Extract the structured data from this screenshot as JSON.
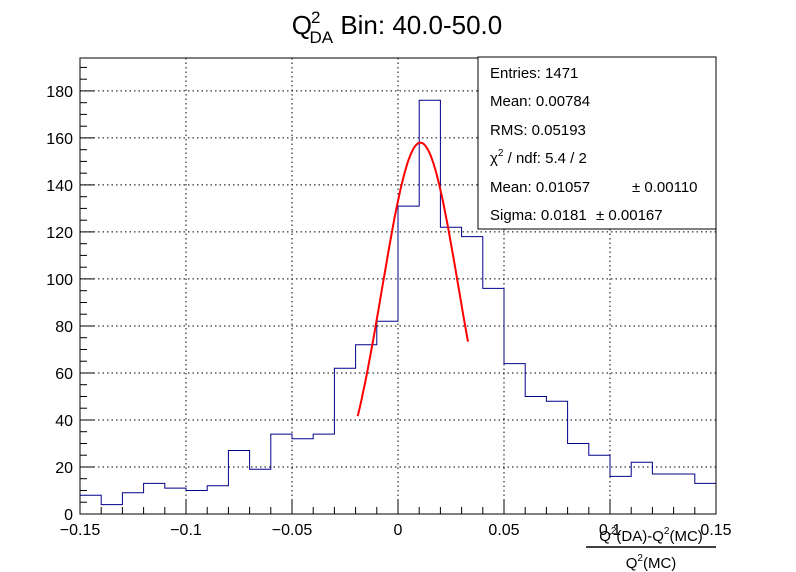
{
  "chart_data": {
    "type": "histogram",
    "title": {
      "main": "Q",
      "sup": "2",
      "sub": "DA",
      "rest": " Bin: 40.0-50.0"
    },
    "xlabel": {
      "numerator_parts": [
        "Q",
        "2",
        "(DA)-Q",
        "2",
        "(MC)"
      ],
      "denominator_parts": [
        "Q",
        "2",
        "(MC)"
      ]
    },
    "xlim": [
      -0.15,
      0.15
    ],
    "ylim": [
      0,
      194
    ],
    "x_ticks": [
      -0.15,
      -0.1,
      -0.05,
      0,
      0.05,
      0.1,
      0.15
    ],
    "x_tick_labels": [
      "−0.15",
      "−0.1",
      "−0.05",
      "0",
      "0.05",
      "0.1",
      "0.15"
    ],
    "y_ticks": [
      0,
      20,
      40,
      60,
      80,
      100,
      120,
      140,
      160,
      180
    ],
    "y_tick_labels": [
      "0",
      "20",
      "40",
      "60",
      "80",
      "100",
      "120",
      "140",
      "160",
      "180"
    ],
    "grid": true,
    "bin_edges_start": -0.15,
    "bin_width": 0.01,
    "counts": [
      8,
      4,
      9,
      13,
      11,
      10,
      12,
      27,
      19,
      34,
      32,
      34,
      62,
      72,
      82,
      131,
      176,
      122,
      118,
      96,
      64,
      50,
      48,
      30,
      25,
      16,
      22,
      17,
      17,
      13,
      9
    ],
    "hist_color": "#00008b",
    "fit": {
      "function": "gaus",
      "amplitude": 158,
      "mean": 0.01057,
      "sigma": 0.0181,
      "range": [
        -0.019,
        0.033
      ],
      "color": "#ff0000"
    },
    "stats": {
      "entries": "Entries: 1471",
      "mean": "Mean: 0.00784",
      "rms": "RMS: 0.05193",
      "chi2_prefix": "χ",
      "chi2_sup": "2",
      "chi2_rest": " / ndf: 5.4 / 2",
      "fit_mean": "Mean: 0.01057",
      "fit_mean_err": "± 0.00110",
      "fit_sigma": "Sigma: 0.0181",
      "fit_sigma_err": "± 0.00167"
    }
  }
}
